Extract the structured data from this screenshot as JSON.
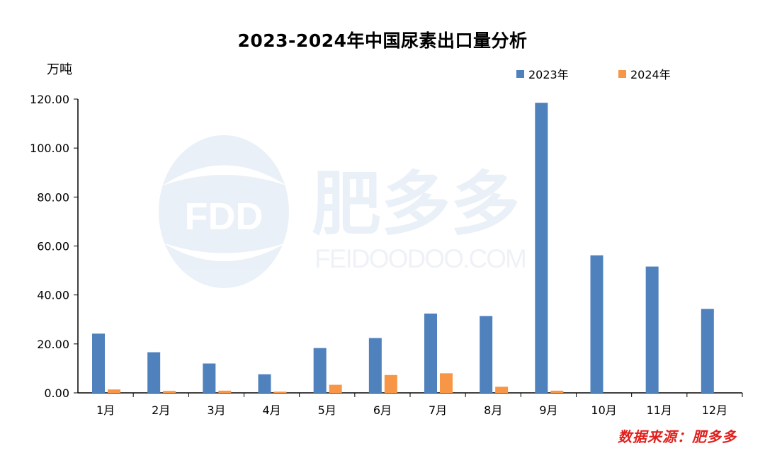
{
  "chart_data": {
    "type": "bar",
    "title": "2023-2024年中国尿素出口量分析",
    "ylabel": "万吨",
    "xlabel": "",
    "categories": [
      "1月",
      "2月",
      "3月",
      "4月",
      "5月",
      "6月",
      "7月",
      "8月",
      "9月",
      "10月",
      "11月",
      "12月"
    ],
    "series": [
      {
        "name": "2023年",
        "color": "#4f81bd",
        "values": [
          24.2,
          16.6,
          12.0,
          7.6,
          18.3,
          22.4,
          32.4,
          31.4,
          118.5,
          56.2,
          51.6,
          34.3
        ]
      },
      {
        "name": "2024年",
        "color": "#f79646",
        "values": [
          1.4,
          0.8,
          0.9,
          0.5,
          3.3,
          7.3,
          8.0,
          2.5,
          0.9,
          null,
          null,
          null
        ]
      }
    ],
    "ylim": [
      0,
      120
    ],
    "yticks": [
      "0.00",
      "20.00",
      "40.00",
      "60.00",
      "80.00",
      "100.00",
      "120.00"
    ],
    "grid": false,
    "legend_position": "top-right"
  },
  "source_note": "数据来源：肥多多",
  "watermark": {
    "logo_text": "FDD",
    "brand_text": "肥多多",
    "site_text": "FEIDOODOO.COM"
  }
}
